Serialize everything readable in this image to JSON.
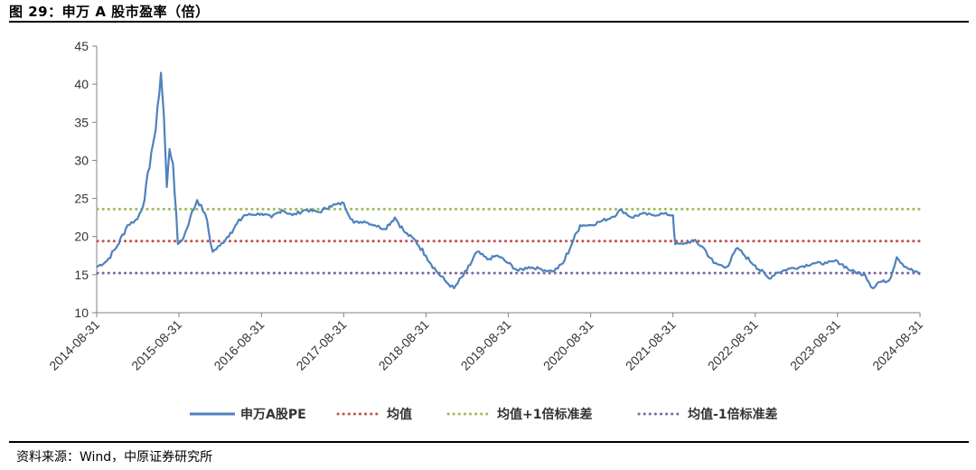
{
  "figure": {
    "title": "图 29：申万 A 股市盈率（倍）",
    "source": "资料来源：Wind，中原证券研究所"
  },
  "chart_data": {
    "type": "line",
    "title": "",
    "xlabel": "",
    "ylabel": "",
    "ylim": [
      10,
      45
    ],
    "yticks": [
      10,
      15,
      20,
      25,
      30,
      35,
      40,
      45
    ],
    "xrange": [
      "2014-08-31",
      "2024-08-31"
    ],
    "xticks": [
      "2014-08-31",
      "2015-08-31",
      "2016-08-31",
      "2017-08-31",
      "2018-08-31",
      "2019-08-31",
      "2020-08-31",
      "2021-08-31",
      "2022-08-31",
      "2023-08-31",
      "2024-08-31"
    ],
    "grid": false,
    "legend": "bottom",
    "series": [
      {
        "name": "申万A股PE",
        "color": "#4F81BD",
        "style": "solid",
        "x": [
          "2014-08-31",
          "2014-10-15",
          "2014-12-01",
          "2015-01-15",
          "2015-02-28",
          "2015-03-31",
          "2015-04-30",
          "2015-05-20",
          "2015-06-12",
          "2015-06-25",
          "2015-07-08",
          "2015-07-20",
          "2015-08-05",
          "2015-08-26",
          "2015-09-20",
          "2015-10-20",
          "2015-11-20",
          "2015-12-25",
          "2016-01-28",
          "2016-02-29",
          "2016-04-15",
          "2016-06-15",
          "2016-08-31",
          "2016-10-15",
          "2016-11-30",
          "2017-01-15",
          "2017-03-15",
          "2017-05-15",
          "2017-06-30",
          "2017-08-31",
          "2017-10-15",
          "2017-11-30",
          "2018-01-15",
          "2018-02-28",
          "2018-04-15",
          "2018-05-31",
          "2018-07-15",
          "2018-08-31",
          "2018-10-15",
          "2018-11-30",
          "2019-01-03",
          "2019-02-28",
          "2019-04-15",
          "2019-05-31",
          "2019-07-15",
          "2019-08-31",
          "2019-10-15",
          "2019-11-30",
          "2020-01-15",
          "2020-02-28",
          "2020-03-23",
          "2020-04-30",
          "2020-06-15",
          "2020-07-15",
          "2020-08-31",
          "2020-10-15",
          "2020-11-30",
          "2021-01-15",
          "2021-02-28",
          "2021-04-15",
          "2021-05-31",
          "2021-07-15",
          "2021-08-31",
          "2021-09-10",
          "2021-10-15",
          "2021-11-30",
          "2022-01-15",
          "2022-02-28",
          "2022-04-26",
          "2022-06-15",
          "2022-07-15",
          "2022-08-31",
          "2022-10-31",
          "2022-11-30",
          "2023-01-31",
          "2023-03-15",
          "2023-05-15",
          "2023-07-15",
          "2023-08-31",
          "2023-10-31",
          "2023-12-31",
          "2024-02-05",
          "2024-02-28",
          "2024-04-15",
          "2024-05-20",
          "2024-06-30",
          "2024-08-31"
        ],
        "values": [
          16.0,
          16.8,
          18.8,
          21.5,
          22.3,
          24.8,
          31.0,
          34.0,
          41.5,
          36.0,
          26.5,
          31.5,
          29.5,
          19.0,
          19.8,
          22.5,
          24.8,
          23.0,
          18.0,
          18.8,
          20.5,
          22.8,
          23.0,
          22.5,
          23.5,
          22.8,
          23.5,
          23.2,
          24.0,
          24.4,
          21.8,
          22.0,
          21.5,
          21.0,
          22.5,
          20.5,
          19.5,
          17.5,
          15.5,
          14.0,
          13.2,
          15.5,
          18.0,
          17.0,
          17.5,
          16.5,
          15.5,
          16.0,
          15.8,
          15.5,
          15.5,
          16.5,
          19.5,
          21.5,
          21.5,
          22.0,
          22.5,
          23.5,
          22.5,
          23.0,
          22.8,
          23.0,
          22.8,
          19.0,
          19.0,
          19.5,
          18.5,
          16.5,
          16.0,
          18.5,
          17.5,
          16.2,
          14.5,
          15.2,
          15.8,
          16.0,
          16.5,
          16.5,
          16.8,
          15.5,
          15.0,
          13.2,
          14.0,
          14.2,
          17.3,
          16.0,
          15.0
        ]
      },
      {
        "name": "均值",
        "color": "#C0504D",
        "style": "dotted",
        "value": 19.4
      },
      {
        "name": "均值+1倍标准差",
        "color": "#9BBB59",
        "style": "dotted",
        "value": 23.6
      },
      {
        "name": "均值-1倍标准差",
        "color": "#8064A2",
        "style": "dotted",
        "value": 15.2
      }
    ]
  }
}
